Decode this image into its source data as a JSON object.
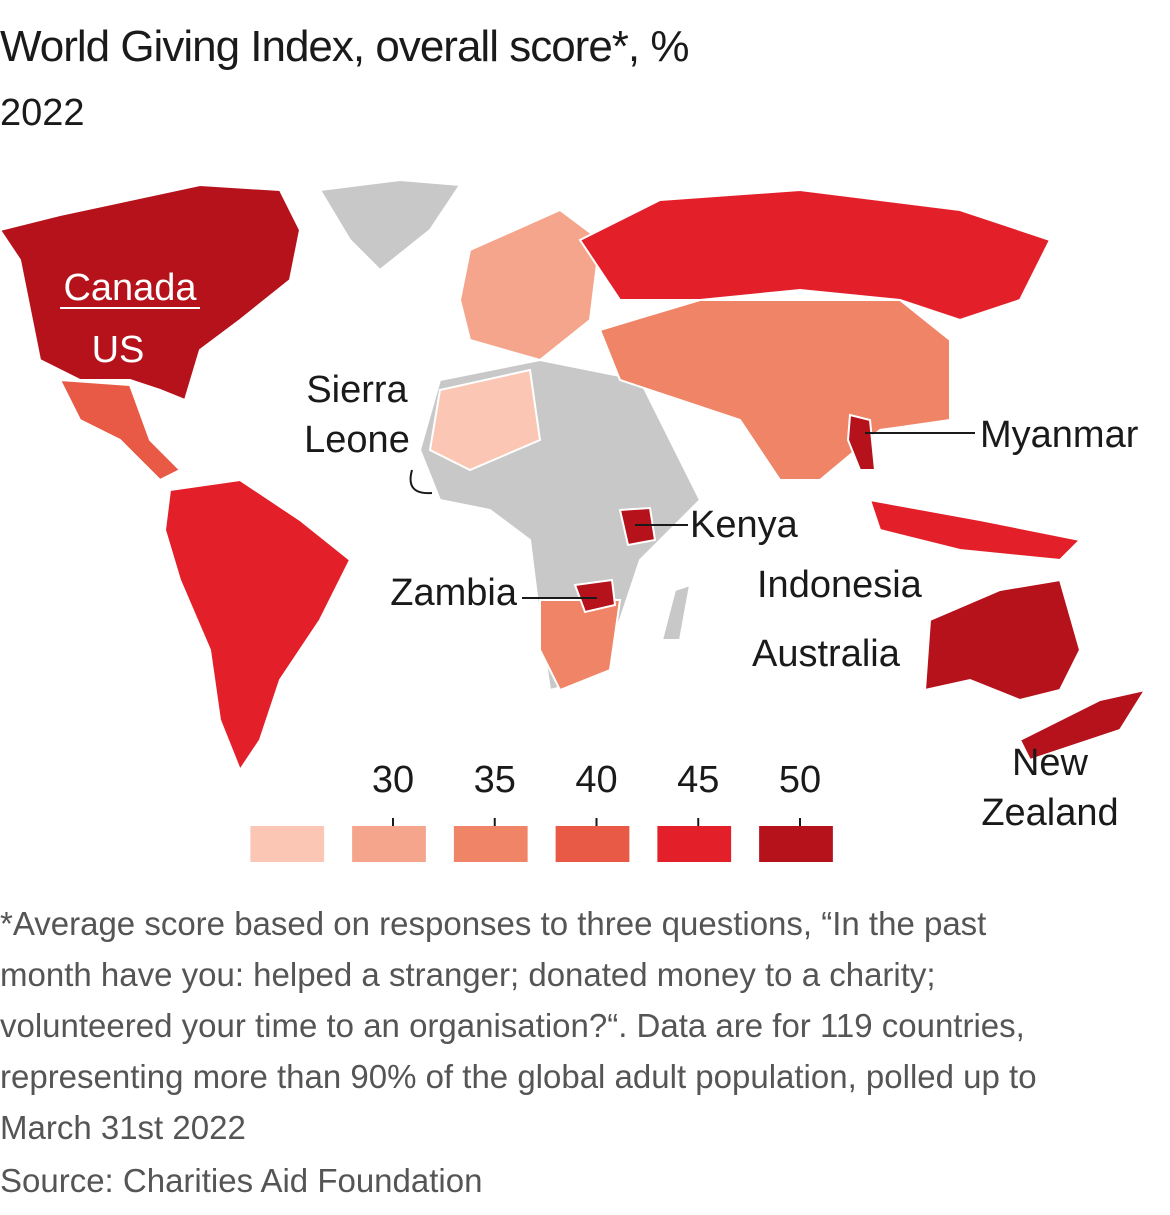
{
  "header": {
    "title": "World Giving Index, overall score*, %",
    "subtitle": "2022"
  },
  "map": {
    "labels": [
      [
        "Canada"
      ],
      [
        "US"
      ],
      [
        "Sierra",
        "Leone"
      ],
      [
        "Myanmar"
      ],
      [
        "Kenya"
      ],
      [
        "Indonesia"
      ],
      [
        "Zambia"
      ],
      [
        "Australia"
      ],
      [
        "New",
        "Zealand"
      ]
    ]
  },
  "legend": {
    "thresholds": [
      30,
      35,
      40,
      45,
      50
    ],
    "colors": [
      "#fbc7b4",
      "#f5a58c",
      "#f08466",
      "#e85a45",
      "#e3202a",
      "#b5121b"
    ]
  },
  "footnote": "*Average score based on responses to three questions, “In the past month have you: helped a stranger; donated money to a charity; volunteered your time to an organisation?“. Data are for 119 countries, representing more than 90% of the global adult population, polled up to March 31st 2022",
  "source": "Source: Charities Aid Foundation"
}
